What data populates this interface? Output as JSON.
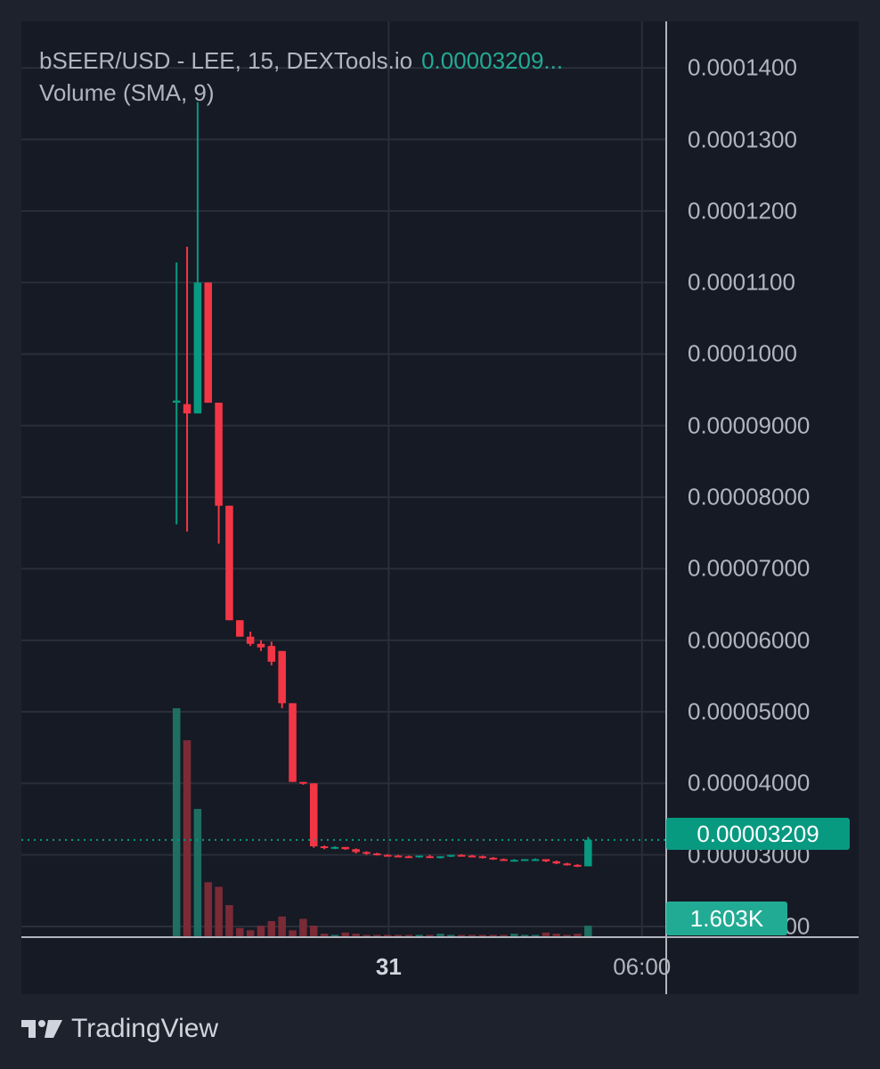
{
  "header": {
    "symbol_line": "bSEER/USD - LEE, 15, DEXTools.io",
    "last_price_text": "0.00003209...",
    "indicator_line": "Volume (SMA, 9)"
  },
  "badges": {
    "last_price": "0.00003209",
    "last_volume": "1.603K"
  },
  "footer": {
    "brand": "TradingView"
  },
  "colors": {
    "up": "#089981",
    "down": "#f23645",
    "up_volume": "#1f6e62",
    "down_volume": "#7a2b36",
    "grid": "#2a2e39",
    "background": "#161a25"
  },
  "chart_data": {
    "type": "candlestick",
    "timeframe": "15",
    "y_tick_labels": [
      "0.0001400",
      "0.0001300",
      "0.0001200",
      "0.0001100",
      "0.0001000",
      "0.00009000",
      "0.00008000",
      "0.00007000",
      "0.00006000",
      "0.00005000",
      "0.00004000",
      "0.00003000",
      "0.00002000"
    ],
    "y_ticks": [
      0.00014,
      0.00013,
      0.00012,
      0.00011,
      0.0001,
      9e-05,
      8e-05,
      7e-05,
      6e-05,
      5e-05,
      4e-05,
      3e-05,
      2e-05
    ],
    "ylim": [
      1.85e-05,
      0.0001465
    ],
    "x_ticks": [
      {
        "label": "31",
        "index": 20.1,
        "bold": true
      },
      {
        "label": "06:00",
        "index": 44.1,
        "bold": false
      }
    ],
    "x_range": [
      -14.7,
      46.4
    ],
    "candles": [
      {
        "o": 9.32e-05,
        "h": 0.0001128,
        "l": 7.62e-05,
        "c": 9.35e-05
      },
      {
        "o": 9.3e-05,
        "h": 0.000115,
        "l": 7.52e-05,
        "c": 9.17e-05
      },
      {
        "o": 9.17e-05,
        "h": 0.0001352,
        "l": 9.17e-05,
        "c": 0.00011
      },
      {
        "o": 0.00011,
        "h": 0.00011,
        "l": 9.32e-05,
        "c": 9.32e-05
      },
      {
        "o": 9.32e-05,
        "h": 9.32e-05,
        "l": 7.35e-05,
        "c": 7.88e-05
      },
      {
        "o": 7.88e-05,
        "h": 7.88e-05,
        "l": 6.28e-05,
        "c": 6.28e-05
      },
      {
        "o": 6.28e-05,
        "h": 6.28e-05,
        "l": 6.05e-05,
        "c": 6.05e-05
      },
      {
        "o": 6.05e-05,
        "h": 6.12e-05,
        "l": 5.92e-05,
        "c": 5.95e-05
      },
      {
        "o": 5.95e-05,
        "h": 6e-05,
        "l": 5.85e-05,
        "c": 5.9e-05
      },
      {
        "o": 5.92e-05,
        "h": 5.98e-05,
        "l": 5.65e-05,
        "c": 5.7e-05
      },
      {
        "o": 5.85e-05,
        "h": 5.85e-05,
        "l": 5.05e-05,
        "c": 5.12e-05
      },
      {
        "o": 5.12e-05,
        "h": 5.12e-05,
        "l": 4.02e-05,
        "c": 4.02e-05
      },
      {
        "o": 4.02e-05,
        "h": 4.02e-05,
        "l": 3.98e-05,
        "c": 4e-05
      },
      {
        "o": 4e-05,
        "h": 4e-05,
        "l": 3.1e-05,
        "c": 3.12e-05
      },
      {
        "o": 3.12e-05,
        "h": 3.13e-05,
        "l": 3.08e-05,
        "c": 3.1e-05
      },
      {
        "o": 3.1e-05,
        "h": 3.12e-05,
        "l": 3.08e-05,
        "c": 3.11e-05
      },
      {
        "o": 3.11e-05,
        "h": 3.11e-05,
        "l": 3.07e-05,
        "c": 3.08e-05
      },
      {
        "o": 3.08e-05,
        "h": 3.09e-05,
        "l": 3.02e-05,
        "c": 3.04e-05
      },
      {
        "o": 3.04e-05,
        "h": 3.05e-05,
        "l": 3e-05,
        "c": 3.02e-05
      },
      {
        "o": 3.02e-05,
        "h": 3.03e-05,
        "l": 2.99e-05,
        "c": 3e-05
      },
      {
        "o": 3e-05,
        "h": 3.01e-05,
        "l": 2.98e-05,
        "c": 2.99e-05
      },
      {
        "o": 2.99e-05,
        "h": 3e-05,
        "l": 2.97e-05,
        "c": 2.98e-05
      },
      {
        "o": 2.98e-05,
        "h": 2.99e-05,
        "l": 2.96e-05,
        "c": 2.97e-05
      },
      {
        "o": 2.97e-05,
        "h": 2.99e-05,
        "l": 2.96e-05,
        "c": 2.99e-05
      },
      {
        "o": 2.98e-05,
        "h": 3e-05,
        "l": 2.96e-05,
        "c": 2.97e-05
      },
      {
        "o": 2.97e-05,
        "h": 2.98e-05,
        "l": 2.95e-05,
        "c": 2.98e-05
      },
      {
        "o": 2.98e-05,
        "h": 3e-05,
        "l": 2.97e-05,
        "c": 3e-05
      },
      {
        "o": 3e-05,
        "h": 3.01e-05,
        "l": 2.98e-05,
        "c": 2.99e-05
      },
      {
        "o": 2.99e-05,
        "h": 3e-05,
        "l": 2.97e-05,
        "c": 2.98e-05
      },
      {
        "o": 2.98e-05,
        "h": 2.99e-05,
        "l": 2.95e-05,
        "c": 2.96e-05
      },
      {
        "o": 2.96e-05,
        "h": 2.97e-05,
        "l": 2.93e-05,
        "c": 2.94e-05
      },
      {
        "o": 2.94e-05,
        "h": 2.95e-05,
        "l": 2.92e-05,
        "c": 2.93e-05
      },
      {
        "o": 2.93e-05,
        "h": 2.94e-05,
        "l": 2.92e-05,
        "c": 2.93e-05
      },
      {
        "o": 2.93e-05,
        "h": 2.94e-05,
        "l": 2.92e-05,
        "c": 2.94e-05
      },
      {
        "o": 2.94e-05,
        "h": 2.95e-05,
        "l": 2.93e-05,
        "c": 2.94e-05
      },
      {
        "o": 2.94e-05,
        "h": 2.94e-05,
        "l": 2.9e-05,
        "c": 2.91e-05
      },
      {
        "o": 2.91e-05,
        "h": 2.92e-05,
        "l": 2.87e-05,
        "c": 2.88e-05
      },
      {
        "o": 2.88e-05,
        "h": 2.89e-05,
        "l": 2.85e-05,
        "c": 2.86e-05
      },
      {
        "o": 2.86e-05,
        "h": 2.87e-05,
        "l": 2.83e-05,
        "c": 2.84e-05
      },
      {
        "o": 2.84e-05,
        "h": 3.25e-05,
        "l": 2.84e-05,
        "c": 3.21e-05
      }
    ],
    "volume": {
      "name": "Volume (SMA, 9)",
      "max": 1.0,
      "values": [
        1.0,
        0.86,
        0.56,
        0.24,
        0.22,
        0.14,
        0.04,
        0.03,
        0.05,
        0.07,
        0.09,
        0.03,
        0.08,
        0.05,
        0.015,
        0.01,
        0.02,
        0.015,
        0.01,
        0.01,
        0.01,
        0.01,
        0.01,
        0.01,
        0.01,
        0.015,
        0.01,
        0.01,
        0.01,
        0.01,
        0.01,
        0.01,
        0.015,
        0.01,
        0.01,
        0.02,
        0.015,
        0.01,
        0.015,
        0.05
      ]
    },
    "last_price": 3.209e-05
  }
}
